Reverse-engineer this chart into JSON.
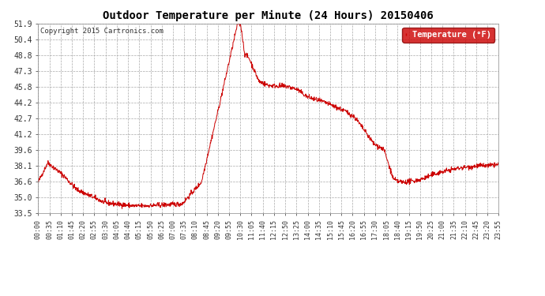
{
  "title": "Outdoor Temperature per Minute (24 Hours) 20150406",
  "copyright_text": "Copyright 2015 Cartronics.com",
  "legend_label": "Temperature (°F)",
  "line_color": "#cc0000",
  "bg_color": "#ffffff",
  "grid_color": "#aaaaaa",
  "yticks": [
    33.5,
    35.0,
    36.6,
    38.1,
    39.6,
    41.2,
    42.7,
    44.2,
    45.8,
    47.3,
    48.8,
    50.4,
    51.9
  ],
  "ymin": 33.5,
  "ymax": 51.9,
  "xtick_labels": [
    "00:00",
    "00:35",
    "01:10",
    "01:45",
    "02:20",
    "02:55",
    "03:30",
    "04:05",
    "04:40",
    "05:15",
    "05:50",
    "06:25",
    "07:00",
    "07:35",
    "08:10",
    "08:45",
    "09:20",
    "09:55",
    "10:30",
    "11:05",
    "11:40",
    "12:15",
    "12:50",
    "13:25",
    "14:00",
    "14:35",
    "15:10",
    "15:45",
    "16:20",
    "16:55",
    "17:30",
    "18:05",
    "18:40",
    "19:15",
    "19:50",
    "20:25",
    "21:00",
    "21:35",
    "22:10",
    "22:45",
    "23:20",
    "23:55"
  ],
  "legend_bg": "#cc0000",
  "legend_text_color": "#ffffff",
  "key_times": [
    0,
    0.5,
    1.3,
    2.0,
    3.5,
    4.5,
    5.0,
    5.5,
    6.5,
    7.5,
    8.5,
    9.5,
    10.4,
    10.55,
    10.75,
    11.0,
    11.5,
    12.0,
    13.0,
    13.5,
    14.0,
    14.5,
    15.0,
    15.5,
    16.0,
    16.5,
    17.0,
    17.5,
    18.0,
    18.5,
    18.7,
    19.0,
    19.5,
    20.0,
    20.5,
    21.0,
    21.5,
    22.0,
    22.5,
    23.0,
    23.5,
    23.9
  ],
  "key_temps": [
    36.5,
    38.4,
    37.2,
    35.8,
    34.5,
    34.3,
    34.2,
    34.2,
    34.3,
    34.4,
    36.5,
    44.5,
    52.0,
    51.8,
    49.0,
    48.5,
    46.3,
    45.9,
    45.8,
    45.5,
    44.8,
    44.5,
    44.2,
    43.8,
    43.4,
    42.8,
    41.5,
    40.2,
    39.7,
    36.8,
    36.6,
    36.5,
    36.6,
    36.8,
    37.2,
    37.5,
    37.7,
    37.9,
    38.0,
    38.1,
    38.1,
    38.2
  ]
}
